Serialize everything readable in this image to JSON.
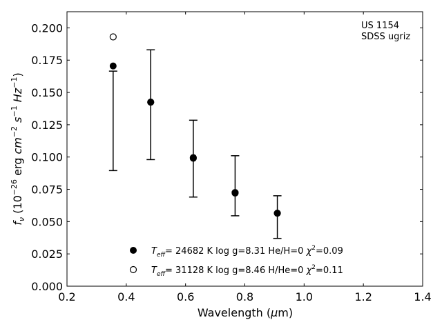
{
  "chart_data": {
    "type": "scatter",
    "title": "",
    "annotation_lines": [
      "US 1154",
      "SDSS ugriz"
    ],
    "xlabel": "Wavelength (μm)",
    "ylabel": "f_ν (10^-26 erg cm^-2 s^-1 Hz^-1)",
    "xlim": [
      0.2,
      1.4
    ],
    "ylim": [
      0.0,
      0.2125
    ],
    "xticks": [
      0.2,
      0.4,
      0.6,
      0.8,
      1.0,
      1.2,
      1.4
    ],
    "xtick_labels": [
      "0.2",
      "0.4",
      "0.6",
      "0.8",
      "1.0",
      "1.2",
      "1.4"
    ],
    "yticks": [
      0.0,
      0.025,
      0.05,
      0.075,
      0.1,
      0.125,
      0.15,
      0.175,
      0.2
    ],
    "ytick_labels": [
      "0.000",
      "0.025",
      "0.050",
      "0.075",
      "0.100",
      "0.125",
      "0.150",
      "0.175",
      "0.200"
    ],
    "grid": false,
    "legend_position": "bottom-center",
    "observed": {
      "x": [
        0.3557,
        0.4825,
        0.6261,
        0.7672,
        0.9097
      ],
      "y_err_center": [
        0.128,
        0.1405,
        0.099,
        0.078,
        0.0535
      ],
      "y_err_low": [
        0.0895,
        0.098,
        0.069,
        0.0545,
        0.037
      ],
      "y_err_high": [
        0.1665,
        0.183,
        0.1285,
        0.101,
        0.07
      ]
    },
    "series": [
      {
        "name": "T_eff= 24682 K  log g=8.31  He/H=0  χ²=0.09",
        "marker": "filled-circle",
        "x": [
          0.3557,
          0.4825,
          0.6261,
          0.7672,
          0.9097
        ],
        "y": [
          0.1705,
          0.1425,
          0.099,
          0.072,
          0.0565
        ]
      },
      {
        "name": "T_eff= 31128 K  log g=8.46  H/He=0  χ²=0.11",
        "marker": "open-circle",
        "x": [
          0.3557,
          0.4825,
          0.6261,
          0.7672,
          0.9097
        ],
        "y": [
          0.193,
          0.1425,
          0.0995,
          0.0725,
          0.0565
        ]
      }
    ]
  }
}
